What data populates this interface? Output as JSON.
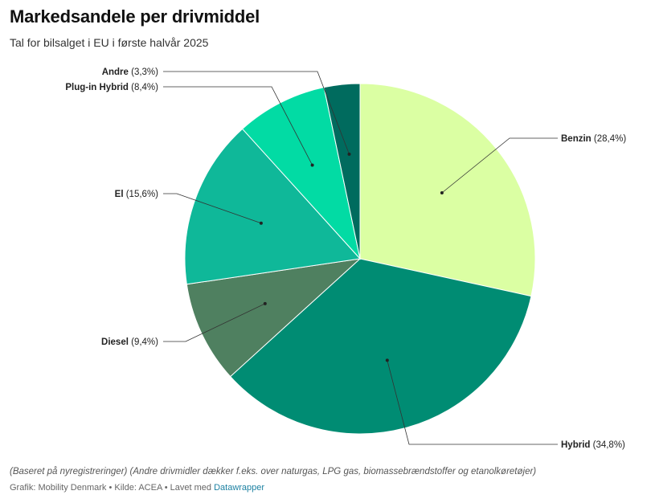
{
  "title": "Markedsandele per drivmiddel",
  "subtitle": "Tal for bilsalget i EU i første halvår 2025",
  "chart_data": {
    "type": "pie",
    "categories": [
      "Benzin",
      "Hybrid",
      "Diesel",
      "El",
      "Plug-in Hybrid",
      "Andre"
    ],
    "values": [
      28.4,
      34.8,
      9.4,
      15.6,
      8.4,
      3.3
    ],
    "value_labels": [
      "(28,4%)",
      "(34,8%)",
      "(9,4%)",
      "(15,6%)",
      "(8,4%)",
      "(3,3%)"
    ],
    "colors": [
      "#dbffa3",
      "#008c73",
      "#4f8060",
      "#0fb899",
      "#02dba4",
      "#006b5e"
    ],
    "start_angle": "12 o'clock, clockwise",
    "legend": "none (direct labels)"
  },
  "note": "(Baseret på nyregistreringer) (Andre drivmidler dækker f.eks. over naturgas, LPG gas, biomassebrændstoffer og etanolkøretøjer)",
  "footer": {
    "prefix": "Grafik: Mobility Denmark • Kilde: ACEA • Lavet med ",
    "link": "Datawrapper"
  }
}
